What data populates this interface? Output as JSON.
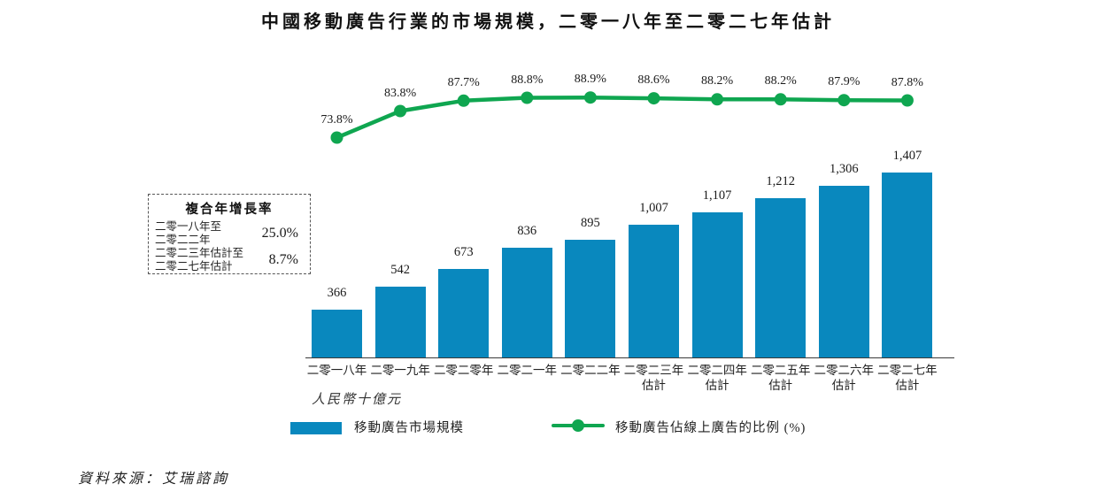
{
  "title": "中國移動廣告行業的市場規模，二零一八年至二零二七年估計",
  "cagr_box": {
    "title": "複合年增長率",
    "rows": [
      {
        "label_line1": "二零一八年至",
        "label_line2": "二零二二年",
        "value": "25.0%"
      },
      {
        "label_line1": "二零二三年估計至",
        "label_line2": "二零二七年估計",
        "value": "8.7%"
      }
    ]
  },
  "unit_note": "人民幣十億元",
  "legend": [
    {
      "type": "bar",
      "label": "移動廣告市場規模",
      "color": "#0988BE"
    },
    {
      "type": "line",
      "label": "移動廣告佔線上廣告的比例 (%)",
      "color": "#0FA650"
    }
  ],
  "source": "資料來源：艾瑞諮詢",
  "chart_data": {
    "type": "bar",
    "title": "中國移動廣告行業的市場規模，二零一八年至二零二七年估計",
    "xlabel": "",
    "ylabel": "人民幣十億元",
    "grid": false,
    "legend_position": "bottom",
    "bar_ylim": [
      0,
      1500
    ],
    "line_ylim": [
      0,
      100
    ],
    "categories": [
      {
        "label": "二零一八年",
        "sub": ""
      },
      {
        "label": "二零一九年",
        "sub": ""
      },
      {
        "label": "二零二零年",
        "sub": ""
      },
      {
        "label": "二零二一年",
        "sub": ""
      },
      {
        "label": "二零二二年",
        "sub": ""
      },
      {
        "label": "二零二三年",
        "sub": "估計"
      },
      {
        "label": "二零二四年",
        "sub": "估計"
      },
      {
        "label": "二零二五年",
        "sub": "估計"
      },
      {
        "label": "二零二六年",
        "sub": "估計"
      },
      {
        "label": "二零二七年",
        "sub": "估計"
      }
    ],
    "series": [
      {
        "name": "移動廣告市場規模",
        "type": "bar",
        "unit": "人民幣十億元",
        "color": "#0988BE",
        "values": [
          366,
          542,
          673,
          836,
          895,
          1007,
          1107,
          1212,
          1306,
          1407
        ],
        "labels": [
          "366",
          "542",
          "673",
          "836",
          "895",
          "1,007",
          "1,107",
          "1,212",
          "1,306",
          "1,407"
        ]
      },
      {
        "name": "移動廣告佔線上廣告的比例 (%)",
        "type": "line",
        "unit": "%",
        "color": "#0FA650",
        "values": [
          73.8,
          83.8,
          87.7,
          88.8,
          88.9,
          88.6,
          88.2,
          88.2,
          87.9,
          87.8
        ],
        "labels": [
          "73.8%",
          "83.8%",
          "87.7%",
          "88.8%",
          "88.9%",
          "88.6%",
          "88.2%",
          "88.2%",
          "87.9%",
          "87.8%"
        ]
      }
    ]
  }
}
